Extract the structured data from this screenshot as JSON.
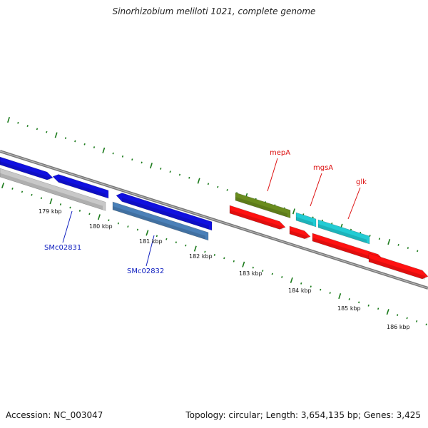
{
  "title": "Sinorhizobium meliloti 1021, complete genome",
  "footer": {
    "accession": "Accession: NC_003047",
    "summary": "Topology: circular; Length: 3,654,135 bp; Genes: 3,425"
  },
  "map": {
    "kbp_ticks": [
      "179 kbp",
      "180 kbp",
      "181 kbp",
      "182 kbp",
      "183 kbp",
      "184 kbp",
      "185 kbp",
      "186 kbp"
    ],
    "gene_labels": [
      {
        "text": "SMc02831",
        "color": "#1020c0"
      },
      {
        "text": "SMc02832",
        "color": "#1020c0"
      },
      {
        "text": "mepA",
        "color": "#dd1111"
      },
      {
        "text": "mgsA",
        "color": "#dd1111"
      },
      {
        "text": "glk",
        "color": "#dd1111"
      }
    ],
    "colors": {
      "backbone": "#777777",
      "tick_marks": "#1a7a1a",
      "blue_gene": "#1010e0",
      "gray_gene": "#c8c8c8",
      "steelblue_gene": "#4a80b8",
      "olive_gene": "#6a8c1e",
      "cyan_gene": "#22ccd4",
      "red_gene": "#ff1111",
      "label_blue": "#1020c0",
      "label_red": "#dd1111"
    }
  }
}
